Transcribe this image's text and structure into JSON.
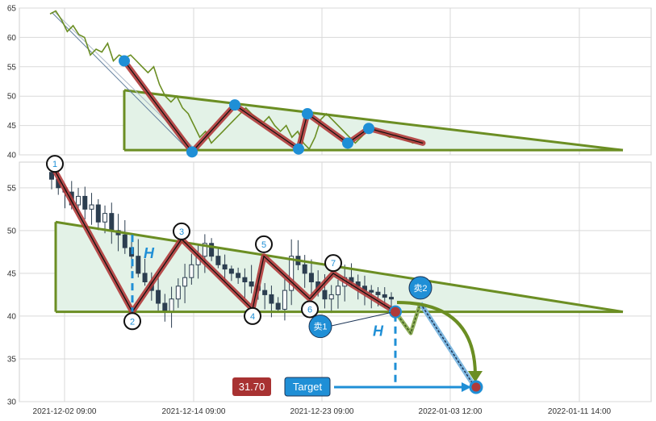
{
  "colors": {
    "price_line": "#6b8e23",
    "triangle_edge": "#6b8e23",
    "triangle_fill": "#e3f2e7",
    "pattern_outer": "#b03a3a",
    "pattern_inner": "#111111",
    "pivot_dot": "#1f8fd6",
    "measure": "#1f8fd6",
    "price_box": "#a83232",
    "target_box": "#1f8fd6",
    "grid": "#d9d9d9",
    "candle": "#2c3e50"
  },
  "chart_data": [
    {
      "type": "line",
      "panel": "top",
      "ylim": [
        40,
        65
      ],
      "yticks": [
        "40",
        "45",
        "50",
        "55",
        "60",
        "65"
      ],
      "grid": true,
      "series": [
        {
          "values": [
            64,
            64.5,
            63,
            61,
            62,
            60.5,
            60,
            57,
            58,
            57.5,
            59,
            56,
            57,
            56.5,
            57,
            56,
            55,
            54,
            55,
            52,
            50,
            49,
            50,
            48,
            47,
            45,
            43,
            44,
            42,
            43,
            44,
            45,
            46,
            47,
            48,
            47,
            46,
            45.5,
            46.5,
            45,
            44,
            45,
            43,
            44,
            42,
            41,
            43,
            46,
            47,
            46,
            45,
            44,
            43,
            42,
            43,
            44,
            44.5,
            44,
            43.5,
            43,
            43.5,
            43,
            42.5,
            42,
            42.3,
            42
          ]
        }
      ],
      "pattern_pivots": [
        56,
        40.5,
        48.5,
        41,
        47,
        42,
        44.5,
        42
      ]
    },
    {
      "type": "candlestick",
      "panel": "bottom",
      "ylim": [
        30,
        58
      ],
      "yticks": [
        "30",
        "35",
        "40",
        "45",
        "50",
        "55"
      ],
      "x_tick_labels": [
        "2021-12-02 09:00",
        "2021-12-14 09:00",
        "2021-12-23 09:00",
        "2022-01-03 12:00",
        "2022-01-11 14:00"
      ],
      "grid": true,
      "closes": [
        56,
        55,
        54.5,
        53,
        54,
        52.5,
        53,
        51,
        52,
        50,
        49.5,
        48,
        47,
        45,
        44,
        43,
        41.5,
        40.5,
        42,
        43.5,
        44.5,
        46,
        47,
        48.5,
        47,
        46,
        45.5,
        45,
        44.5,
        44,
        43.5,
        43,
        42.5,
        41.5,
        40.8,
        43,
        47,
        46,
        45,
        44,
        43,
        42,
        42.5,
        43.5,
        44.5,
        44,
        43.5,
        43,
        42.8,
        42.5,
        42.2,
        42
      ],
      "pattern_points": [
        {
          "label": "1",
          "value": 57
        },
        {
          "label": "2",
          "value": 40.5
        },
        {
          "label": "3",
          "value": 49
        },
        {
          "label": "4",
          "value": 40.8
        },
        {
          "label": "5",
          "value": 47
        },
        {
          "label": "6",
          "value": 42
        },
        {
          "label": "7",
          "value": 45
        }
      ],
      "triangle": {
        "upper_start": 51,
        "upper_end": 40.5,
        "base": 40.5
      },
      "forecast": {
        "sell1": 40.5,
        "sell2": 41.5,
        "dip": 38,
        "target": 31.7
      },
      "annotations": {
        "height_label": "H",
        "sell1_label": "卖1",
        "sell2_label": "卖2",
        "price_label": "31.70",
        "target_label": "Target"
      }
    }
  ]
}
